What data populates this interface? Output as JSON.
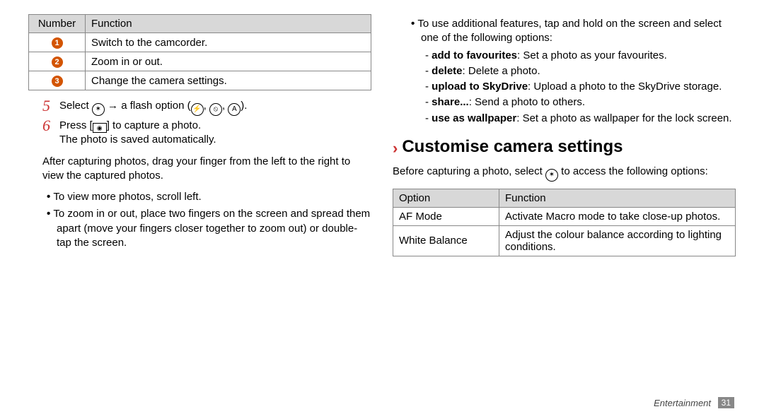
{
  "left": {
    "table": {
      "header": {
        "number": "Number",
        "function": "Function"
      },
      "rows": [
        {
          "n": "1",
          "fn": "Switch to the camcorder."
        },
        {
          "n": "2",
          "fn": "Zoom in or out."
        },
        {
          "n": "3",
          "fn": "Change the camera settings."
        }
      ]
    },
    "step5": {
      "n": "5",
      "pre": "Select ",
      "mid": " → a flash option (",
      "sep": ", ",
      "post": ")."
    },
    "step6": {
      "n": "6",
      "line1a": "Press [",
      "line1b": "] to capture a photo.",
      "line2": "The photo is saved automatically."
    },
    "para1": "After capturing photos, drag your finger from the left to the right to view the captured photos.",
    "b1": "To view more photos, scroll left.",
    "b2": "To zoom in or out, place two fingers on the screen and spread them apart (move your fingers closer together to zoom out) or double-tap the screen."
  },
  "right": {
    "b1": "To use additional features, tap and hold on the screen and select one of the following options:",
    "sub": [
      {
        "strong": "add to favourites",
        "rest": ": Set a photo as your favourites."
      },
      {
        "strong": "delete",
        "rest": ": Delete a photo."
      },
      {
        "strong": "upload to SkyDrive",
        "rest": ": Upload a photo to the SkyDrive storage."
      },
      {
        "strong": "share...",
        "rest": ": Send a photo to others."
      },
      {
        "strong": "use as wallpaper",
        "rest": ": Set a photo as wallpaper for the lock screen."
      }
    ],
    "heading": "Customise camera settings",
    "para_pre": "Before capturing a photo, select ",
    "para_post": " to access the following options:",
    "table": {
      "header": {
        "option": "Option",
        "function": "Function"
      },
      "rows": [
        {
          "opt": "AF Mode",
          "fn": "Activate Macro mode to take close-up photos."
        },
        {
          "opt": "White Balance",
          "fn": "Adjust the colour balance according to lighting conditions."
        }
      ]
    }
  },
  "footer": {
    "section": "Entertainment",
    "page": "31"
  },
  "icons": {
    "settings_gear": "✶",
    "flash_on": "⚡",
    "flash_off": "⦸",
    "flash_auto": "A",
    "camera": "◉"
  },
  "colors": {
    "accent_orange": "#d35400",
    "accent_red": "#c33",
    "header_grey": "#d8d8d8",
    "border_grey": "#888",
    "footer_grey": "#888"
  }
}
